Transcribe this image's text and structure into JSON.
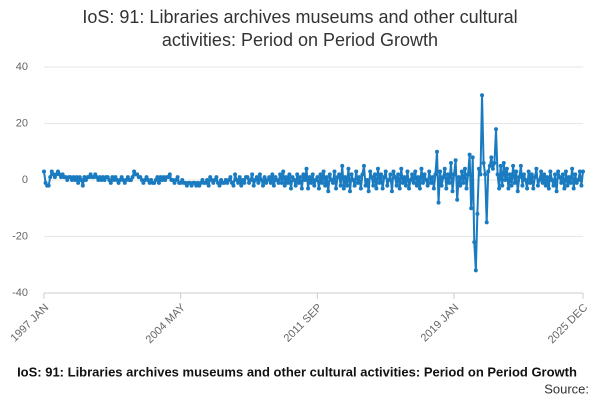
{
  "chart_data": {
    "type": "line",
    "title": "IoS: 91: Libraries archives museums and other cultural activities: Period on Period Growth",
    "footer_title": "IoS: 91: Libraries archives museums and other cultural activities: Period on Period Growth",
    "source": "Source:",
    "ylim": [
      -40,
      40
    ],
    "yticks": [
      -40,
      -20,
      0,
      20,
      40
    ],
    "grid": true,
    "categories": [
      "1997 JAN",
      null,
      null,
      null,
      null,
      null,
      null,
      null,
      null,
      null,
      null,
      null,
      null,
      null,
      null,
      null,
      null,
      null,
      null,
      null,
      null,
      null,
      null,
      null,
      null,
      null,
      null,
      null,
      null,
      null,
      null,
      null,
      null,
      null,
      null,
      null,
      null,
      null,
      null,
      null,
      null,
      null,
      null,
      null,
      null,
      null,
      null,
      null,
      null,
      null,
      null,
      null,
      null,
      null,
      null,
      null,
      null,
      null,
      null,
      null,
      null,
      null,
      null,
      null,
      null,
      null,
      null,
      null,
      null,
      null,
      null,
      null,
      null,
      null,
      null,
      null,
      null,
      null,
      null,
      null,
      null,
      null,
      null,
      null,
      null,
      null,
      null,
      null,
      "2004 MAY",
      null,
      null,
      null,
      null,
      null,
      null,
      null,
      null,
      null,
      null,
      null,
      null,
      null,
      null,
      null,
      null,
      null,
      null,
      null,
      null,
      null,
      null,
      null,
      null,
      null,
      null,
      null,
      null,
      null,
      null,
      null,
      null,
      null,
      null,
      null,
      null,
      null,
      null,
      null,
      null,
      null,
      null,
      null,
      null,
      null,
      null,
      null,
      null,
      null,
      null,
      null,
      null,
      null,
      null,
      null,
      null,
      null,
      null,
      null,
      null,
      null,
      null,
      null,
      null,
      null,
      null,
      null,
      null,
      null,
      null,
      null,
      null,
      null,
      null,
      null,
      null,
      null,
      null,
      null,
      null,
      null,
      null,
      null,
      null,
      null,
      null,
      null,
      "2011 SEP",
      null,
      null,
      null,
      null,
      null,
      null,
      null,
      null,
      null,
      null,
      null,
      null,
      null,
      null,
      null,
      null,
      null,
      null,
      null,
      null,
      null,
      null,
      null,
      null,
      null,
      null,
      null,
      null,
      null,
      null,
      null,
      null,
      null,
      null,
      null,
      null,
      null,
      null,
      null,
      null,
      null,
      null,
      null,
      null,
      null,
      null,
      null,
      null,
      null,
      null,
      null,
      null,
      null,
      null,
      null,
      null,
      null,
      null,
      null,
      null,
      null,
      null,
      null,
      null,
      null,
      null,
      null,
      null,
      null,
      null,
      null,
      null,
      null,
      null,
      null,
      null,
      null,
      null,
      null,
      null,
      null,
      null,
      null,
      null,
      null,
      null,
      null,
      "2019 JAN",
      null,
      null,
      null,
      null,
      null,
      null,
      null,
      null,
      null,
      null,
      null,
      null,
      null,
      null,
      null,
      null,
      null,
      null,
      null,
      null,
      null,
      null,
      null,
      null,
      null,
      null,
      null,
      null,
      null,
      null,
      null,
      null,
      null,
      null,
      null,
      null,
      null,
      null,
      null,
      null,
      null,
      null,
      null,
      null,
      null,
      null,
      null,
      null,
      null,
      null,
      null,
      null,
      null,
      null,
      null,
      null,
      null,
      null,
      null,
      null,
      null,
      null,
      null,
      null,
      null,
      null,
      null,
      null,
      null,
      null,
      null,
      null,
      null,
      null,
      null,
      null,
      null,
      null,
      null,
      null,
      null,
      null,
      "2025 DEC"
    ],
    "series": [
      {
        "color": "#1a7bc0",
        "values": [
          3,
          -1,
          -2,
          -2,
          1,
          3,
          2,
          1,
          2,
          3,
          2,
          1,
          2,
          1,
          1,
          0,
          1,
          1,
          0,
          1,
          0,
          1,
          -1,
          1,
          0,
          -2,
          1,
          0,
          1,
          1,
          2,
          1,
          1,
          2,
          1,
          0,
          1,
          0,
          1,
          0,
          1,
          1,
          0,
          -1,
          1,
          0,
          1,
          0,
          -1,
          0,
          1,
          0,
          -1,
          0,
          1,
          0,
          0,
          1,
          3,
          2,
          2,
          1,
          1,
          0,
          -1,
          0,
          1,
          0,
          -1,
          0,
          -1,
          -1,
          0,
          1,
          -1,
          1,
          0,
          1,
          0,
          1,
          1,
          2,
          0,
          0,
          -1,
          0,
          1,
          -1,
          -1,
          0,
          -1,
          -1,
          -2,
          -1,
          -1,
          -2,
          -1,
          -1,
          -2,
          -1,
          -2,
          -1,
          0,
          -1,
          -1,
          0,
          -2,
          1,
          0,
          -1,
          0,
          1,
          -1,
          -2,
          0,
          -1,
          -1,
          0,
          -1,
          0,
          1,
          -1,
          -2,
          2,
          0,
          -1,
          1,
          -2,
          0,
          -1,
          1,
          1,
          -1,
          0,
          2,
          -2,
          0,
          1,
          -1,
          2,
          0,
          -2,
          1,
          -1,
          0,
          1,
          -1,
          2,
          -2,
          1,
          0,
          -1,
          2,
          -1,
          3,
          -2,
          1,
          -1,
          2,
          -3,
          1,
          0,
          -2,
          2,
          -1,
          1,
          -3,
          2,
          0,
          4,
          -3,
          1,
          -1,
          2,
          -2,
          0,
          1,
          -3,
          2,
          -1,
          3,
          -2,
          1,
          -4,
          2,
          0,
          -1,
          3,
          -3,
          1,
          2,
          -2,
          5,
          -3,
          1,
          -2,
          4,
          -4,
          2,
          0,
          -2,
          3,
          -1,
          1,
          -3,
          2,
          5,
          -2,
          0,
          -4,
          3,
          1,
          -2,
          2,
          -3,
          4,
          -1,
          2,
          -3,
          1,
          3,
          -2,
          0,
          2,
          -4,
          3,
          1,
          -2,
          2,
          -3,
          4,
          -1,
          1,
          -2,
          3,
          -3,
          0,
          2,
          -1,
          3,
          -2,
          1,
          -3,
          4,
          -1,
          2,
          0,
          -2,
          3,
          -1,
          1,
          -3,
          2,
          10,
          -8,
          3,
          -2,
          1,
          4,
          -3,
          2,
          -1,
          6,
          -4,
          2,
          7,
          -7,
          1,
          -2,
          3,
          -1,
          4,
          -3,
          2,
          9,
          -10,
          8,
          -22,
          -32,
          -12,
          4,
          2,
          30,
          6,
          2,
          -15,
          3,
          5,
          8,
          4,
          6,
          18,
          2,
          -3,
          5,
          -2,
          6,
          0,
          4,
          -3,
          2,
          -2,
          5,
          -1,
          3,
          -4,
          1,
          5,
          -2,
          2,
          0,
          -3,
          3,
          -1,
          2,
          -3,
          1,
          4,
          -2,
          0,
          3,
          -1,
          2,
          -2,
          1,
          -3,
          3,
          0,
          -2,
          2,
          -4,
          3,
          1,
          -1,
          2,
          -3,
          3,
          -2,
          1,
          -1,
          4,
          -3,
          2,
          -1,
          0,
          3,
          -2,
          3
        ]
      }
    ]
  }
}
